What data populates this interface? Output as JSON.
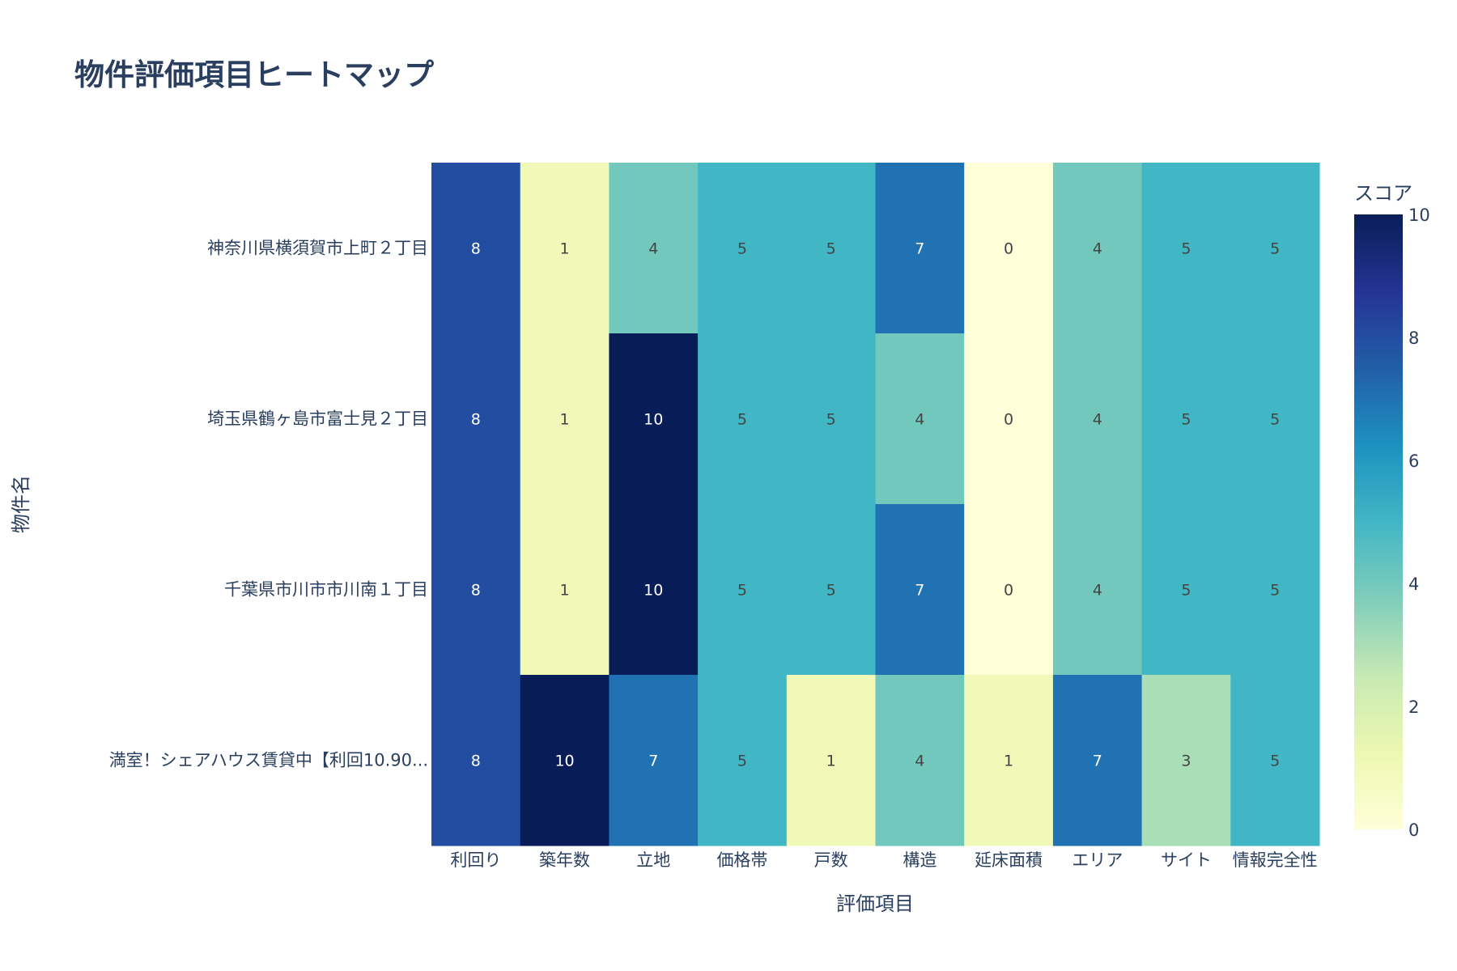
{
  "chart_data": {
    "type": "heatmap",
    "title": "物件評価項目ヒートマップ",
    "xlabel": "評価項目",
    "ylabel": "物件名",
    "x": [
      "利回り",
      "築年数",
      "立地",
      "価格帯",
      "戸数",
      "構造",
      "延床面積",
      "エリア",
      "サイト",
      "情報完全性"
    ],
    "y": [
      "神奈川県横須賀市上町２丁目",
      "埼玉県鶴ヶ島市富士見２丁目",
      "千葉県市川市市川南１丁目",
      "満室！シェアハウス賃貸中【利回10.90..."
    ],
    "z": [
      [
        8,
        1,
        4,
        5,
        5,
        7,
        0,
        4,
        5,
        5
      ],
      [
        8,
        1,
        10,
        5,
        5,
        4,
        0,
        4,
        5,
        5
      ],
      [
        8,
        1,
        10,
        5,
        5,
        7,
        0,
        4,
        5,
        5
      ],
      [
        8,
        10,
        7,
        5,
        1,
        4,
        1,
        7,
        3,
        5
      ]
    ],
    "colorbar": {
      "title": "スコア",
      "range": [
        0,
        10
      ],
      "ticks": [
        "0",
        "2",
        "4",
        "6",
        "8",
        "10"
      ]
    },
    "colorscale": "YlGnBu",
    "colorscale_stops": [
      "#ffffd9",
      "#edf8b1",
      "#c7e9b4",
      "#7fcdbb",
      "#41b6c4",
      "#1d91c0",
      "#225ea8",
      "#253494",
      "#081d58"
    ]
  }
}
